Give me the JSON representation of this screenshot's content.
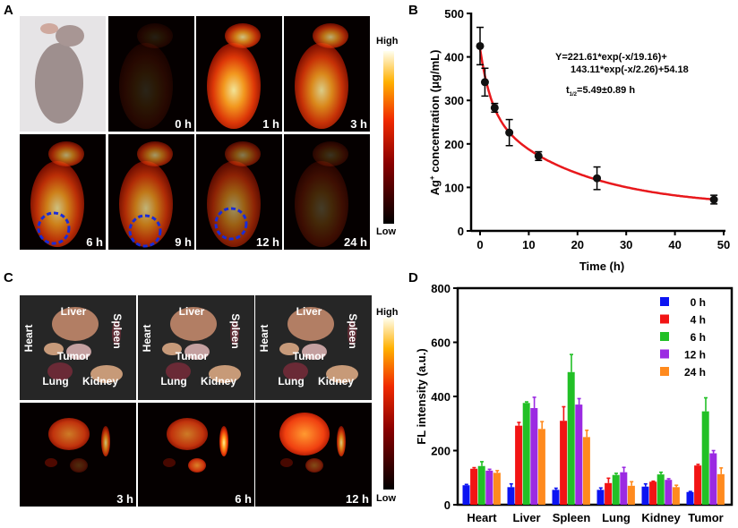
{
  "panel_labels": {
    "a": "A",
    "b": "B",
    "c": "C",
    "d": "D"
  },
  "panel_a": {
    "time_labels": [
      "0 h",
      "1 h",
      "3 h",
      "6 h",
      "9 h",
      "12 h",
      "24 h"
    ],
    "colorbar": {
      "high": "High",
      "low": "Low"
    },
    "tumor_circle_color": "#1a2cd8"
  },
  "panel_c": {
    "organ_labels": [
      "Liver",
      "Spleen",
      "Heart",
      "Tumor",
      "Lung",
      "Kidney"
    ],
    "time_labels": [
      "3 h",
      "6 h",
      "12 h"
    ],
    "colorbar": {
      "high": "High",
      "low": "Low"
    }
  },
  "chart_data": [
    {
      "type": "scatter",
      "panel": "B",
      "xlabel": "Time (h)",
      "ylabel": {
        "base": "Ag",
        "sup": "+",
        "rest": " concentration (μg/mL)"
      },
      "xlim": [
        0,
        50
      ],
      "ylim": [
        0,
        500
      ],
      "xticks": [
        "0",
        "10",
        "20",
        "30",
        "40",
        "50"
      ],
      "yticks": [
        "0",
        "100",
        "200",
        "300",
        "400",
        "500"
      ],
      "x": [
        0,
        1,
        3,
        6,
        12,
        24,
        48
      ],
      "y": [
        425,
        342,
        283,
        226,
        172,
        121,
        72
      ],
      "error": [
        43,
        32,
        10,
        30,
        10,
        26,
        10
      ],
      "marker_color": "#111111",
      "fit": {
        "color": "#e8181c",
        "a1": 221.61,
        "t1": 19.16,
        "a2": 143.11,
        "t2": 2.26,
        "c": 54.18,
        "equation_line1": "Y=221.61*exp(-x/19.16)+",
        "equation_line2": "143.11*exp(-x/2.26)+54.18",
        "half_life": {
          "t": "t",
          "sub": "1/2",
          "rest": "=5.49±0.89 h"
        }
      },
      "grid": false
    },
    {
      "type": "bar",
      "panel": "D",
      "ylabel": "FL intensity (a.u.)",
      "ylim": [
        0,
        800
      ],
      "yticks": [
        "0",
        "200",
        "400",
        "600",
        "800"
      ],
      "categories": [
        "Heart",
        "Liver",
        "Spleen",
        "Lung",
        "Kidney",
        "Tumor"
      ],
      "legend_position": "top-right",
      "grid": false,
      "series": [
        {
          "name": "0 h",
          "color": "#0c14f2",
          "values": [
            72,
            65,
            55,
            55,
            67,
            47
          ],
          "error": [
            3,
            12,
            6,
            7,
            10,
            2
          ]
        },
        {
          "name": "4 h",
          "color": "#f21414",
          "values": [
            133,
            292,
            310,
            80,
            85,
            145
          ],
          "error": [
            4,
            12,
            52,
            18,
            2,
            4
          ]
        },
        {
          "name": "6 h",
          "color": "#22c026",
          "values": [
            143,
            376,
            490,
            110,
            112,
            345
          ],
          "error": [
            16,
            4,
            65,
            6,
            8,
            50
          ]
        },
        {
          "name": "12 h",
          "color": "#9b2ae2",
          "values": [
            126,
            357,
            370,
            120,
            92,
            190
          ],
          "error": [
            5,
            40,
            22,
            18,
            4,
            10
          ]
        },
        {
          "name": "24 h",
          "color": "#ff8a1e",
          "values": [
            118,
            280,
            250,
            70,
            65,
            113
          ],
          "error": [
            8,
            27,
            25,
            15,
            7,
            23
          ]
        }
      ]
    }
  ]
}
